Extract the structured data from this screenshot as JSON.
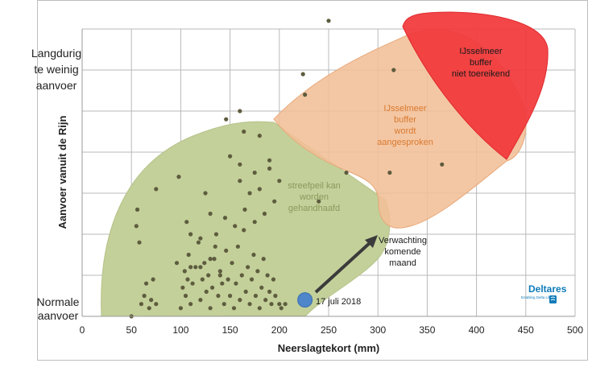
{
  "chart_data": {
    "type": "scatter",
    "xlabel": "Neerslagtekort (mm)",
    "ylabel": "Aanvoer vanuit de Rijn",
    "xlim": [
      0,
      500
    ],
    "x_ticks": [
      "0",
      "50",
      "100",
      "150",
      "200",
      "250",
      "300",
      "350",
      "400",
      "450",
      "500"
    ],
    "y_category_labels": {
      "top": [
        "Langdurig",
        "te weinig",
        "aanvoer"
      ],
      "bottom": [
        "Normale",
        "aanvoer"
      ]
    },
    "grid": true,
    "regions": [
      {
        "label": [
          "streefpeil kan",
          "worden",
          "gehandhaafd"
        ],
        "color": "#c3d09a"
      },
      {
        "label": [
          "IJsselmeer",
          "buffer",
          "wordt",
          "aangesproken"
        ],
        "color": "#f2bf97"
      },
      {
        "label": [
          "IJsselmeer",
          "buffer",
          "niet toereikend"
        ],
        "color": "#f1363a"
      }
    ],
    "series": [
      {
        "values": [
          [
            50,
            0.0
          ],
          [
            55,
            2.2
          ],
          [
            58,
            1.8
          ],
          [
            60,
            0.3
          ],
          [
            63,
            0.5
          ],
          [
            65,
            0.8
          ],
          [
            68,
            0.2
          ],
          [
            70,
            0.4
          ],
          [
            72,
            0.9
          ],
          [
            75,
            0.3
          ],
          [
            56,
            2.6
          ],
          [
            75,
            3.1
          ],
          [
            98,
            3.4
          ],
          [
            100,
            0.2
          ],
          [
            102,
            0.7
          ],
          [
            104,
            1.1
          ],
          [
            105,
            0.5
          ],
          [
            107,
            0.9
          ],
          [
            108,
            1.5
          ],
          [
            110,
            0.3
          ],
          [
            112,
            0.8
          ],
          [
            115,
            1.2
          ],
          [
            118,
            1.8
          ],
          [
            120,
            0.4
          ],
          [
            122,
            0.9
          ],
          [
            124,
            1.3
          ],
          [
            126,
            0.6
          ],
          [
            128,
            1.0
          ],
          [
            130,
            0.2
          ],
          [
            132,
            0.7
          ],
          [
            134,
            1.4
          ],
          [
            136,
            2.0
          ],
          [
            138,
            0.5
          ],
          [
            140,
            1.1
          ],
          [
            142,
            0.8
          ],
          [
            144,
            0.3
          ],
          [
            146,
            1.6
          ],
          [
            148,
            0.9
          ],
          [
            150,
            0.5
          ],
          [
            152,
            1.3
          ],
          [
            154,
            0.2
          ],
          [
            156,
            0.8
          ],
          [
            158,
            1.7
          ],
          [
            160,
            0.4
          ],
          [
            162,
            1.0
          ],
          [
            164,
            2.1
          ],
          [
            166,
            0.6
          ],
          [
            168,
            1.2
          ],
          [
            170,
            0.3
          ],
          [
            172,
            0.9
          ],
          [
            174,
            1.5
          ],
          [
            176,
            0.5
          ],
          [
            178,
            1.1
          ],
          [
            180,
            0.2
          ],
          [
            182,
            0.7
          ],
          [
            184,
            1.4
          ],
          [
            186,
            0.4
          ],
          [
            188,
            1.0
          ],
          [
            190,
            0.6
          ],
          [
            192,
            0.3
          ],
          [
            194,
            0.9
          ],
          [
            196,
            0.5
          ],
          [
            200,
            0.3
          ],
          [
            202,
            0.2
          ],
          [
            206,
            0.3
          ],
          [
            130,
            2.5
          ],
          [
            145,
            2.4
          ],
          [
            155,
            2.2
          ],
          [
            165,
            2.6
          ],
          [
            175,
            2.3
          ],
          [
            185,
            2.5
          ],
          [
            195,
            2.8
          ],
          [
            110,
            2.0
          ],
          [
            120,
            1.9
          ],
          [
            135,
            1.7
          ],
          [
            125,
            3.0
          ],
          [
            160,
            3.3
          ],
          [
            170,
            3.0
          ],
          [
            180,
            3.1
          ],
          [
            190,
            3.6
          ],
          [
            200,
            3.3
          ],
          [
            150,
            3.9
          ],
          [
            160,
            3.7
          ],
          [
            175,
            3.5
          ],
          [
            120,
            1.2
          ],
          [
            130,
            1.4
          ],
          [
            140,
            1.0
          ],
          [
            110,
            1.2
          ],
          [
            106,
            2.3
          ],
          [
            96,
            1.3
          ],
          [
            146,
            4.8
          ],
          [
            160,
            5.0
          ],
          [
            164,
            4.5
          ],
          [
            180,
            4.4
          ],
          [
            190,
            3.8
          ],
          [
            224,
            5.9
          ],
          [
            226,
            5.4
          ],
          [
            240,
            2.8
          ],
          [
            268,
            3.5
          ],
          [
            250,
            7.2
          ],
          [
            316,
            6.0
          ],
          [
            312,
            3.5
          ],
          [
            340,
            9.0
          ],
          [
            364,
            8.4
          ],
          [
            365,
            3.7
          ]
        ]
      },
      {
        "name": "17 juli 2018",
        "values": [
          [
            226,
            0.4
          ]
        ]
      }
    ],
    "annotations": [
      {
        "text": "17 juli 2018"
      },
      {
        "text": [
          "Verwachting",
          "komende",
          "maand"
        ]
      }
    ],
    "logo": {
      "text": "Deltares",
      "tagline": "Enabling Delta Life",
      "color": "#0e7bb8"
    }
  }
}
